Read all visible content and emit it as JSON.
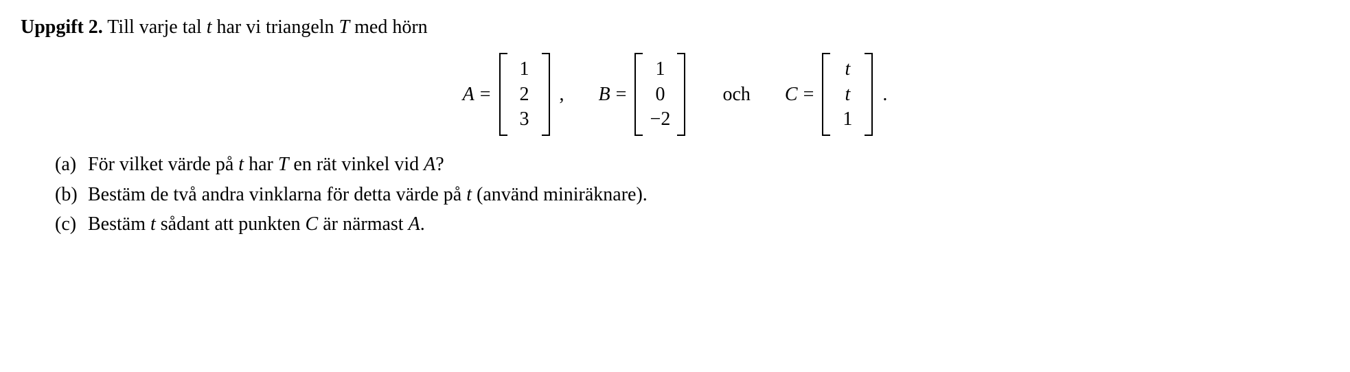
{
  "title": "Uppgift 2.",
  "intro_pre": " Till varje tal ",
  "var_t": "t",
  "intro_mid": " har vi triangeln ",
  "var_T": "T",
  "intro_post": " med hörn",
  "eqA": {
    "label": "A",
    "eq": "=",
    "rows": [
      "1",
      "2",
      "3"
    ],
    "sep": ","
  },
  "eqB": {
    "label": "B",
    "eq": "=",
    "rows": [
      "1",
      "0",
      "−2"
    ]
  },
  "conj": "och",
  "eqC": {
    "label": "C",
    "eq": "=",
    "rows": [
      "t",
      "t",
      "1"
    ],
    "period": "."
  },
  "parts": {
    "a": {
      "label": "(a)",
      "t1": "För vilket värde på ",
      "v1": "t",
      "t2": " har ",
      "v2": "T",
      "t3": " en rät vinkel vid ",
      "v3": "A",
      "t4": "?"
    },
    "b": {
      "label": "(b)",
      "t1": "Bestäm de två andra vinklarna för detta värde på ",
      "v1": "t",
      "t2": " (använd miniräknare)."
    },
    "c": {
      "label": "(c)",
      "t1": "Bestäm ",
      "v1": "t",
      "t2": " sådant att punkten ",
      "v2": "C",
      "t3": " är närmast ",
      "v3": "A",
      "t4": "."
    }
  }
}
